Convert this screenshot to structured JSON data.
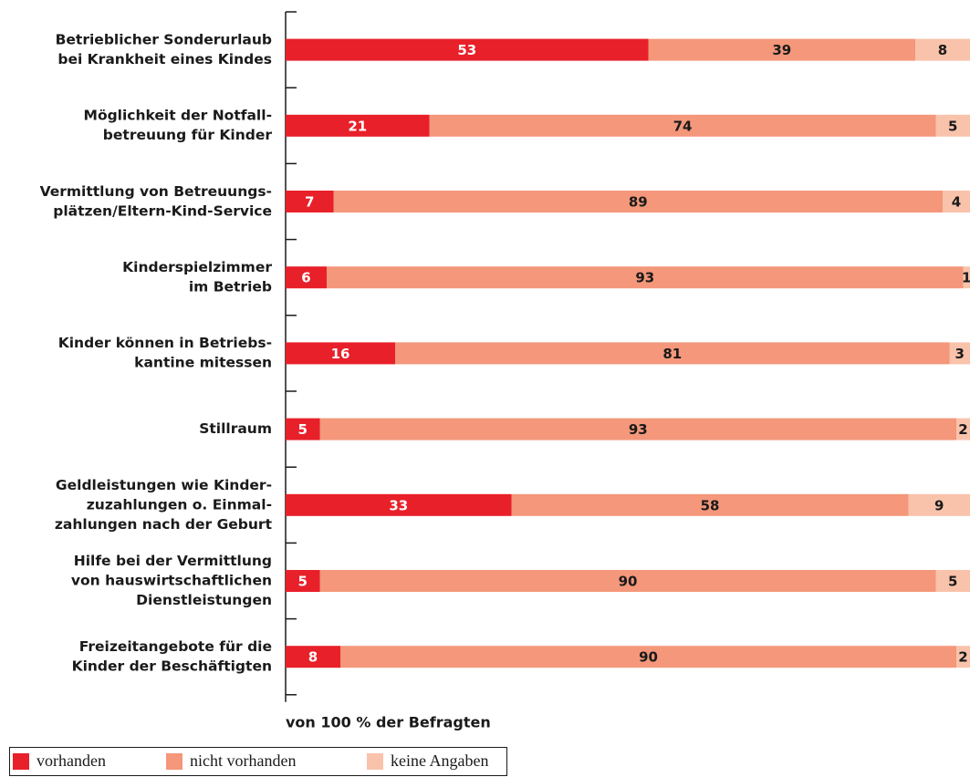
{
  "chart_data": {
    "type": "stacked-barh",
    "categories": [
      [
        "Betrieblicher Sonderurlaub",
        "bei Krankheit eines Kindes"
      ],
      [
        "Möglichkeit der Notfall-",
        "betreuung für Kinder"
      ],
      [
        "Vermittlung von Betreuungs-",
        "plätzen/Eltern-Kind-Service"
      ],
      [
        "Kinderspielzimmer",
        "im Betrieb"
      ],
      [
        "Kinder können in Betriebs-",
        "kantine mitessen"
      ],
      [
        "Stillraum"
      ],
      [
        "Geldleistungen wie Kinder-",
        "zuzahlungen o. Einmal-",
        "zahlungen nach der Geburt"
      ],
      [
        "Hilfe bei der Vermittlung",
        "von hauswirtschaftlichen",
        "Dienstleistungen"
      ],
      [
        "Freizeitangebote für die",
        "Kinder der Beschäftigten"
      ]
    ],
    "series": [
      {
        "name": "vorhanden",
        "color": "#e8202a",
        "values": [
          53,
          21,
          7,
          6,
          16,
          5,
          33,
          5,
          8
        ]
      },
      {
        "name": "nicht vorhanden",
        "color": "#f4977a",
        "values": [
          39,
          74,
          89,
          93,
          81,
          93,
          58,
          90,
          90
        ]
      },
      {
        "name": "keine Angaben",
        "color": "#f9c3ab",
        "values": [
          8,
          5,
          4,
          1,
          3,
          2,
          9,
          5,
          2
        ]
      }
    ],
    "xlabel": "von 100 % der Befragten",
    "xlim": [
      0,
      100
    ]
  }
}
